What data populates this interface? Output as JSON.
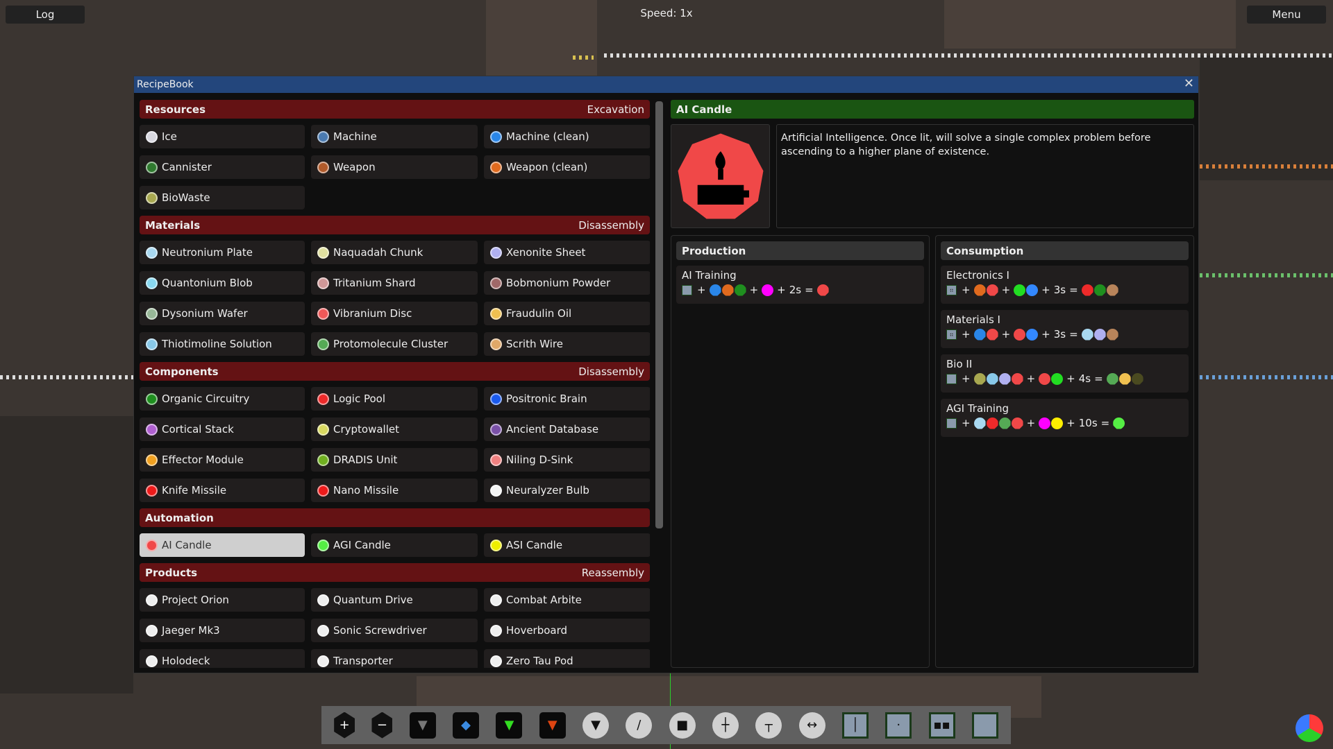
{
  "hud": {
    "log_label": "Log",
    "menu_label": "Menu",
    "speed": "Speed: 1x"
  },
  "window": {
    "title": "RecipeBook",
    "close_icon": "close-icon"
  },
  "sections": [
    {
      "title": "Resources",
      "process": "Excavation",
      "items": [
        {
          "label": "Ice",
          "color": "#d8d8e0"
        },
        {
          "label": "Machine",
          "color": "#4a7ab0"
        },
        {
          "label": "Machine (clean)",
          "color": "#2a86e8"
        },
        {
          "label": "Cannister",
          "color": "#2f7a2f"
        },
        {
          "label": "Weapon",
          "color": "#b05a2a"
        },
        {
          "label": "Weapon (clean)",
          "color": "#e06a1e"
        },
        {
          "label": "BioWaste",
          "color": "#a8a850"
        }
      ]
    },
    {
      "title": "Materials",
      "process": "Disassembly",
      "items": [
        {
          "label": "Neutronium Plate",
          "color": "#a8d8f0"
        },
        {
          "label": "Naquadah Chunk",
          "color": "#e0e0a0"
        },
        {
          "label": "Xenonite Sheet",
          "color": "#b0b0f0"
        },
        {
          "label": "Quantonium Blob",
          "color": "#88d8f0"
        },
        {
          "label": "Tritanium Shard",
          "color": "#d09898"
        },
        {
          "label": "Bobmonium Powder",
          "color": "#a06868"
        },
        {
          "label": "Dysonium Wafer",
          "color": "#98b898"
        },
        {
          "label": "Vibranium Disc",
          "color": "#f05858"
        },
        {
          "label": "Fraudulin Oil",
          "color": "#f0c050"
        },
        {
          "label": "Thiotimoline Solution",
          "color": "#88c8e8"
        },
        {
          "label": "Protomolecule Cluster",
          "color": "#55aa55"
        },
        {
          "label": "Scrith Wire",
          "color": "#e0a868"
        }
      ]
    },
    {
      "title": "Components",
      "process": "Disassembly",
      "items": [
        {
          "label": "Organic Circuitry",
          "color": "#1f8f1f"
        },
        {
          "label": "Logic Pool",
          "color": "#ee2a2a"
        },
        {
          "label": "Positronic Brain",
          "color": "#1a5aee"
        },
        {
          "label": "Cortical Stack",
          "color": "#b060d0"
        },
        {
          "label": "Cryptowallet",
          "color": "#d8d860"
        },
        {
          "label": "Ancient Database",
          "color": "#7a50a8"
        },
        {
          "label": "Effector Module",
          "color": "#f0a020"
        },
        {
          "label": "DRADIS Unit",
          "color": "#70b020"
        },
        {
          "label": "Niling D-Sink",
          "color": "#f08080"
        },
        {
          "label": "Knife Missile",
          "color": "#ee1a1a"
        },
        {
          "label": "Nano Missile",
          "color": "#ee1a1a"
        },
        {
          "label": "Neuralyzer Bulb",
          "color": "#f4f4f4"
        }
      ]
    },
    {
      "title": "Automation",
      "process": "",
      "items": [
        {
          "label": "AI Candle",
          "color": "#f04848",
          "selected": true
        },
        {
          "label": "AGI Candle",
          "color": "#55ee44"
        },
        {
          "label": "ASI Candle",
          "color": "#eeee00"
        }
      ]
    },
    {
      "title": "Products",
      "process": "Reassembly",
      "items": [
        {
          "label": "Project Orion",
          "color": "#eeeeee"
        },
        {
          "label": "Quantum Drive",
          "color": "#eeeeee"
        },
        {
          "label": "Combat Arbite",
          "color": "#eeeeee"
        },
        {
          "label": "Jaeger Mk3",
          "color": "#eeeeee"
        },
        {
          "label": "Sonic Screwdriver",
          "color": "#eeeeee"
        },
        {
          "label": "Hoverboard",
          "color": "#eeeeee"
        },
        {
          "label": "Holodeck",
          "color": "#eeeeee"
        },
        {
          "label": "Transporter",
          "color": "#eeeeee"
        },
        {
          "label": "Zero Tau Pod",
          "color": "#eeeeee"
        }
      ]
    }
  ],
  "detail": {
    "title": "AI Candle",
    "icon_color": "#f04848",
    "header_color": "#1a5512",
    "description": "Artificial Intelligence. Once lit, will solve a single complex problem before ascending to a higher plane of existence.",
    "production_label": "Production",
    "consumption_label": "Consumption",
    "production": [
      {
        "title": "AI Training",
        "machine": "blank",
        "inputs": [
          "#2a86e8",
          "#e06a1e",
          "#1f8f1f"
        ],
        "energy": [
          "#ff00ff"
        ],
        "time": "2s",
        "outputs": [
          "#f04848"
        ]
      }
    ],
    "consumption": [
      {
        "title": "Electronics I",
        "machine": "grid4",
        "inputs": [
          "#e06a1e",
          "#f04848"
        ],
        "energy": [
          "#22dd22",
          "#3388ff"
        ],
        "time": "3s",
        "outputs": [
          "#ee2a2a",
          "#1f8f1f",
          "#b8845a"
        ]
      },
      {
        "title": "Materials I",
        "machine": "grid4",
        "inputs": [
          "#2a86e8",
          "#f04848"
        ],
        "energy": [
          "#f04848",
          "#3388ff"
        ],
        "time": "3s",
        "outputs": [
          "#a8d8f0",
          "#b0b0f0",
          "#b8845a"
        ]
      },
      {
        "title": "Bio II",
        "machine": "blank",
        "inputs": [
          "#a8a850",
          "#88c8e8",
          "#b0b0f0",
          "#f04848"
        ],
        "energy": [
          "#f04848",
          "#22dd22"
        ],
        "time": "4s",
        "outputs": [
          "#55aa55",
          "#f0c050",
          "#4a4a20"
        ]
      },
      {
        "title": "AGI Training",
        "machine": "blank",
        "inputs": [
          "#a8d8f0",
          "#ee2a2a",
          "#55aa55",
          "#f04848"
        ],
        "energy": [
          "#ff00ff",
          "#ffee00"
        ],
        "time": "10s",
        "outputs": [
          "#55ee44"
        ]
      }
    ]
  },
  "toolbar": [
    {
      "icon": "add-hex-icon",
      "glyph": "+",
      "style": "hex"
    },
    {
      "icon": "remove-hex-icon",
      "glyph": "−",
      "style": "hex"
    },
    {
      "icon": "gray-arrow-down-icon",
      "glyph": "▼",
      "style": "sq",
      "color": "#777"
    },
    {
      "icon": "blue-splitter-icon",
      "glyph": "◆",
      "style": "sq",
      "color": "#3a8ae0"
    },
    {
      "icon": "green-arrow-down-icon",
      "glyph": "▼",
      "style": "sq",
      "color": "#33dd22"
    },
    {
      "icon": "orange-arrow-down-icon",
      "glyph": "▼",
      "style": "sq",
      "color": "#dd4411"
    },
    {
      "icon": "belt-down-icon",
      "glyph": "▼",
      "style": "ov"
    },
    {
      "icon": "pencil-icon",
      "glyph": "/",
      "style": "ov"
    },
    {
      "icon": "stop-square-icon",
      "glyph": "■",
      "style": "ov"
    },
    {
      "icon": "junction-right-icon",
      "glyph": "┼",
      "style": "ov"
    },
    {
      "icon": "junction-down-icon",
      "glyph": "┬",
      "style": "ov"
    },
    {
      "icon": "junction-both-icon",
      "glyph": "↔",
      "style": "ov"
    },
    {
      "icon": "split-panel-icon",
      "glyph": "│",
      "style": "panelb"
    },
    {
      "icon": "dot-panel-icon",
      "glyph": "·",
      "style": "panelb"
    },
    {
      "icon": "grid-panel-icon",
      "glyph": "▪▪",
      "style": "panelb"
    },
    {
      "icon": "blank-panel-icon",
      "glyph": "",
      "style": "panelb"
    }
  ]
}
